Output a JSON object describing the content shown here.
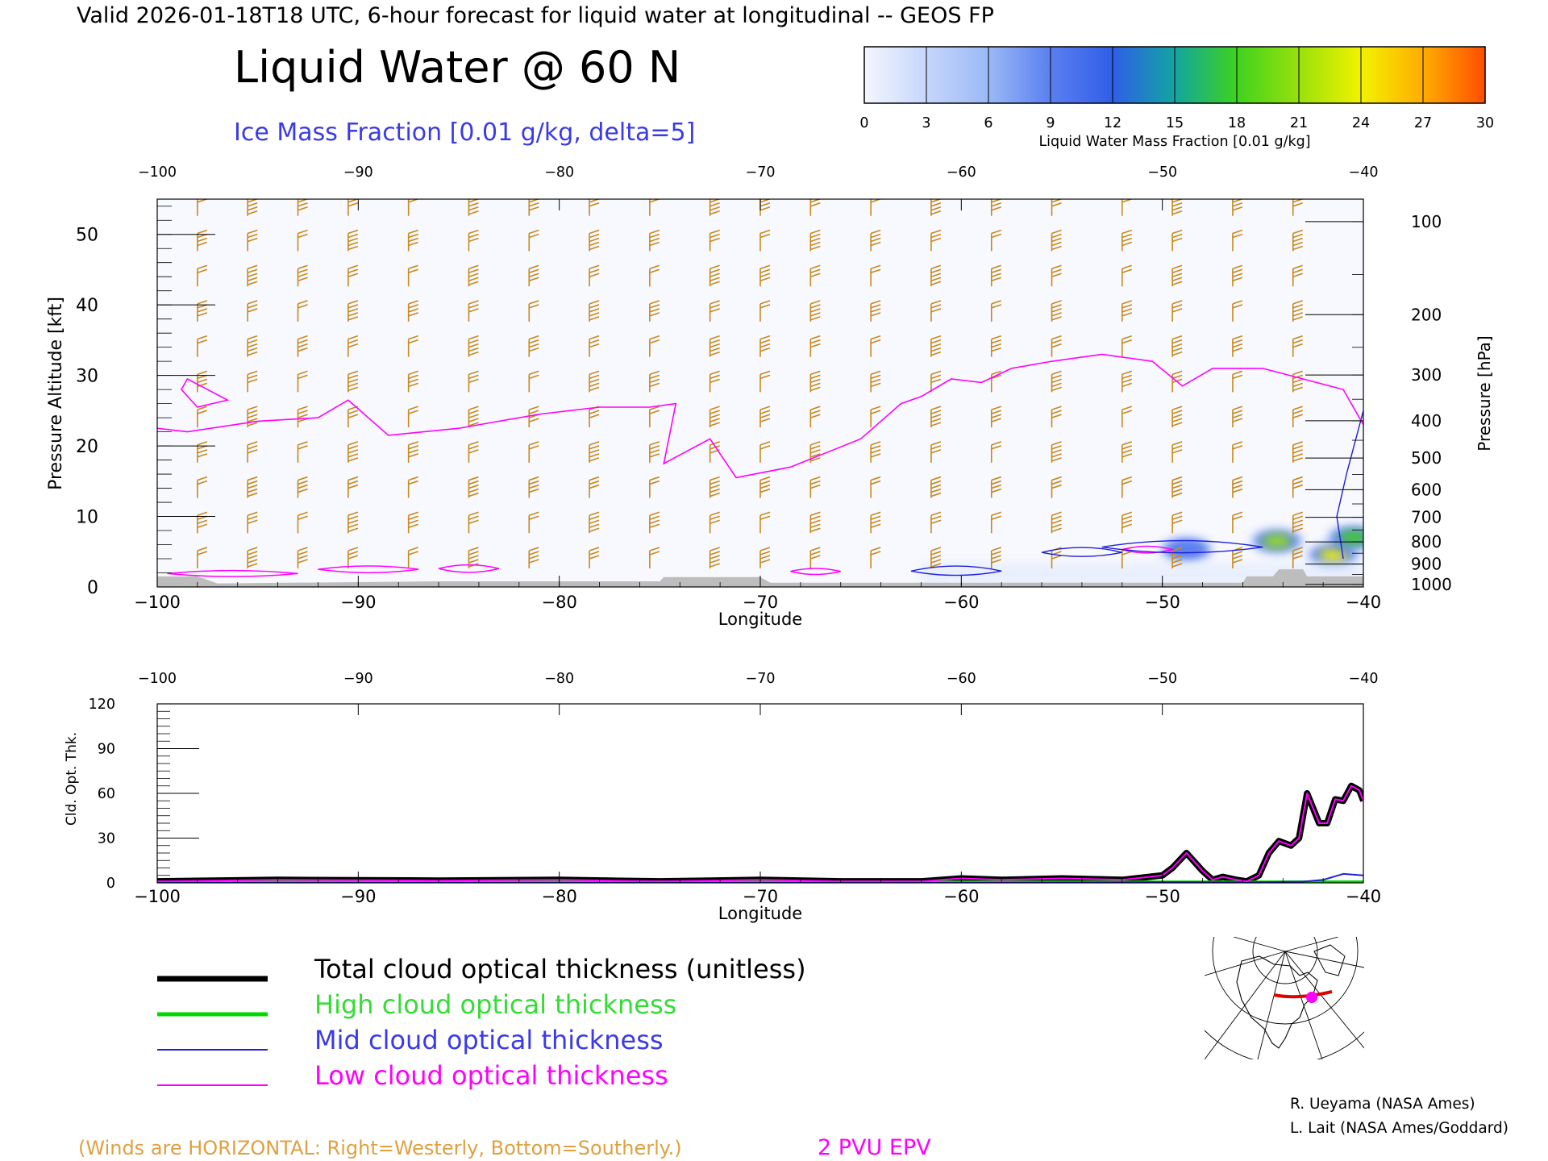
{
  "header": {
    "valid_line": "Valid 2026-01-18T18 UTC, 6-hour forecast for liquid water at longitudinal -- GEOS FP",
    "main_title": "Liquid Water @ 60 N",
    "subtitle": "Ice Mass Fraction [0.01 g/kg, delta=5]"
  },
  "colorbar": {
    "ticks": [
      "0",
      "3",
      "6",
      "9",
      "12",
      "15",
      "18",
      "21",
      "24",
      "27",
      "30"
    ],
    "label": "Liquid Water Mass Fraction [0.01 g/kg]",
    "colors": [
      "#f4f6fe",
      "#c6d6fb",
      "#9bb9f6",
      "#5b7ff0",
      "#2f5ee8",
      "#12a5a0",
      "#3fd21e",
      "#98e10c",
      "#f2f200",
      "#ffad00",
      "#ff4d00"
    ]
  },
  "chart_data": [
    {
      "type": "heatmap",
      "title": "Liquid Water @ 60 N",
      "subtitle": "Ice Mass Fraction [0.01 g/kg, delta=5]",
      "xlabel": "Longitude",
      "ylabel": "Pressure Altitude [kft]",
      "ylabel_right": "Pressure [hPa]",
      "xlim": [
        -100,
        -40
      ],
      "ylim": [
        0,
        55
      ],
      "x_ticks": [
        "-100",
        "-90",
        "-80",
        "-70",
        "-60",
        "-50",
        "-40"
      ],
      "x_ticks_top": [
        "-100",
        "-90",
        "-80",
        "-70",
        "-60",
        "-50",
        "-40"
      ],
      "y_ticks": [
        "0",
        "10",
        "20",
        "30",
        "40",
        "50"
      ],
      "pressure_ticks": [
        "100",
        "200",
        "300",
        "400",
        "500",
        "600",
        "700",
        "800",
        "900",
        "1000"
      ],
      "pressure_tick_values": [
        100,
        200,
        300,
        400,
        500,
        600,
        700,
        800,
        900,
        1000
      ],
      "liquid_water_blobs": [
        {
          "lon": -44.3,
          "kft": 6.5,
          "value": 21
        },
        {
          "lon": -41.5,
          "kft": 4.5,
          "value": 24
        },
        {
          "lon": -48.8,
          "kft": 5.3,
          "value": 9
        },
        {
          "lon": -40.5,
          "kft": 7.0,
          "value": 18
        }
      ],
      "epv_2pvu_line": [
        [
          -100,
          22.5
        ],
        [
          -98.5,
          22
        ],
        [
          -95,
          23.5
        ],
        [
          -92,
          24
        ],
        [
          -90.5,
          26.5
        ],
        [
          -88.5,
          21.5
        ],
        [
          -85,
          22.5
        ],
        [
          -81,
          24.5
        ],
        [
          -78,
          25.5
        ],
        [
          -75.5,
          25.5
        ],
        [
          -74.2,
          26
        ],
        [
          -74.8,
          17.5
        ],
        [
          -72.5,
          21
        ],
        [
          -71.2,
          15.5
        ],
        [
          -68.5,
          17
        ],
        [
          -65,
          21
        ],
        [
          -63,
          26
        ],
        [
          -62,
          27
        ],
        [
          -60.5,
          29.5
        ],
        [
          -59,
          29
        ],
        [
          -57.5,
          31
        ],
        [
          -55.5,
          32
        ],
        [
          -53,
          33
        ],
        [
          -50.5,
          32
        ],
        [
          -49,
          28.5
        ],
        [
          -47.5,
          31
        ],
        [
          -45,
          31
        ],
        [
          -43,
          29.5
        ],
        [
          -41,
          28
        ],
        [
          -40,
          23
        ]
      ],
      "epv_2pvu_loop": [
        [
          -98.5,
          29.5
        ],
        [
          -96.5,
          26.5
        ],
        [
          -98,
          25.5
        ],
        [
          -98.8,
          28
        ]
      ],
      "ice_contours": [
        {
          "lon": [
            -99.5,
            -93
          ],
          "kft": [
            1.5,
            2.3
          ]
        },
        {
          "lon": [
            -92,
            -87
          ],
          "kft": [
            2.0,
            3.0
          ]
        },
        {
          "lon": [
            -86,
            -83
          ],
          "kft": [
            2.0,
            3.2
          ]
        },
        {
          "lon": [
            -68.5,
            -66
          ],
          "kft": [
            1.8,
            2.6
          ]
        },
        {
          "lon": [
            -52,
            -49.5
          ],
          "kft": [
            4.8,
            5.8
          ]
        }
      ],
      "terrain_kft": [
        [
          -100,
          1.5
        ],
        [
          -98,
          1.5
        ],
        [
          -97,
          0.5
        ],
        [
          -86,
          0.8
        ],
        [
          -75,
          0.8
        ],
        [
          -74.8,
          1.4
        ],
        [
          -70,
          1.4
        ],
        [
          -69.5,
          0.6
        ],
        [
          -62,
          0.6
        ],
        [
          -46,
          0.6
        ],
        [
          -45.8,
          1.5
        ],
        [
          -44.5,
          1.5
        ],
        [
          -44.2,
          2.5
        ],
        [
          -43,
          2.5
        ],
        [
          -42.8,
          1.5
        ],
        [
          -40,
          1.5
        ]
      ],
      "wind_barbs": {
        "columns_lon": [
          -98,
          -95.5,
          -93,
          -90.5,
          -87.5,
          -84.5,
          -81.5,
          -78.5,
          -75.5,
          -72.5,
          -70,
          -67.5,
          -64.5,
          -61.5,
          -58.5,
          -55.5,
          -52,
          -49.5,
          -46.5,
          -43.5
        ],
        "levels_kft": [
          54,
          49,
          44,
          39,
          34,
          29,
          24,
          19,
          14,
          9,
          4
        ],
        "color": "#c8881c"
      }
    },
    {
      "type": "line",
      "xlabel": "Longitude",
      "ylabel": "Cld. Opt. Thk.",
      "xlim": [
        -100,
        -40
      ],
      "ylim": [
        0,
        120
      ],
      "x_ticks": [
        "-100",
        "-90",
        "-80",
        "-70",
        "-60",
        "-50",
        "-40"
      ],
      "x_ticks_top": [
        "-100",
        "-90",
        "-80",
        "-70",
        "-60",
        "-50",
        "-40"
      ],
      "y_ticks": [
        "0",
        "30",
        "60",
        "90",
        "120"
      ],
      "series": [
        {
          "name": "Total cloud optical thickness (unitless)",
          "color": "#000000",
          "x": [
            -100,
            -94,
            -86,
            -80,
            -75,
            -70,
            -66,
            -62,
            -60,
            -58,
            -55,
            -52,
            -50,
            -49.5,
            -48.8,
            -48,
            -47.5,
            -47,
            -46.3,
            -45.8,
            -45.2,
            -44.7,
            -44.2,
            -43.6,
            -43.2,
            -42.8,
            -42.2,
            -41.8,
            -41.4,
            -41,
            -40.6,
            -40.2,
            -40
          ],
          "y": [
            1,
            2,
            1.5,
            2,
            1,
            2,
            1,
            1,
            3,
            2,
            3,
            2,
            5,
            10,
            20,
            8,
            2,
            4,
            2,
            1,
            5,
            20,
            28,
            25,
            30,
            60,
            40,
            40,
            56,
            55,
            65,
            62,
            55
          ]
        },
        {
          "name": "High cloud optical thickness",
          "color": "#00d800",
          "x": [
            -100,
            -80,
            -60,
            -50,
            -45,
            -40
          ],
          "y": [
            0.3,
            0.3,
            0.2,
            0.2,
            0.2,
            0.3
          ]
        },
        {
          "name": "Mid cloud optical thickness",
          "color": "#1f1fd8",
          "x": [
            -100,
            -60,
            -50,
            -45,
            -43,
            -42,
            -41,
            -40
          ],
          "y": [
            0,
            0,
            0.5,
            0.5,
            0.8,
            2,
            6,
            5
          ]
        },
        {
          "name": "Low cloud optical thickness",
          "color": "#ff00ff",
          "x": [
            -100,
            -94,
            -86,
            -80,
            -75,
            -70,
            -66,
            -62,
            -60,
            -58,
            -55,
            -52,
            -50,
            -49.5,
            -48.8,
            -48,
            -47.5,
            -47,
            -46.3,
            -45.8,
            -45.2,
            -44.7,
            -44.2,
            -43.6,
            -43.2,
            -42.8,
            -42.2,
            -41.8,
            -41.4,
            -41,
            -40.6,
            -40.2,
            -40
          ],
          "y": [
            1,
            2,
            1.5,
            2,
            1,
            2,
            1,
            1,
            3,
            2,
            3,
            2,
            5,
            10,
            20,
            8,
            2,
            4,
            2,
            1,
            5,
            20,
            28,
            25,
            30,
            60,
            40,
            40,
            56,
            55,
            65,
            62,
            55
          ]
        }
      ]
    }
  ],
  "legend": [
    {
      "label": "Total cloud optical thickness (unitless)",
      "color": "#000000"
    },
    {
      "label": "High cloud optical thickness",
      "color": "#00d800"
    },
    {
      "label": "Mid cloud optical thickness",
      "color": "#1f1fd8"
    },
    {
      "label": "Low cloud optical thickness",
      "color": "#ff00ff"
    }
  ],
  "footer": {
    "winds_note": "(Winds are HORIZONTAL: Right=Westerly, Bottom=Southerly.)",
    "epv_label": "2 PVU EPV",
    "credit1": "R. Ueyama (NASA Ames)",
    "credit2": "L. Lait (NASA Ames/Goddard)"
  },
  "colors": {
    "header_text": "#000000",
    "subtitle": "#3a3ae8",
    "winds_note": "#e0a040",
    "epv": "#ff00ff",
    "terrain": "#bdbdbd"
  }
}
